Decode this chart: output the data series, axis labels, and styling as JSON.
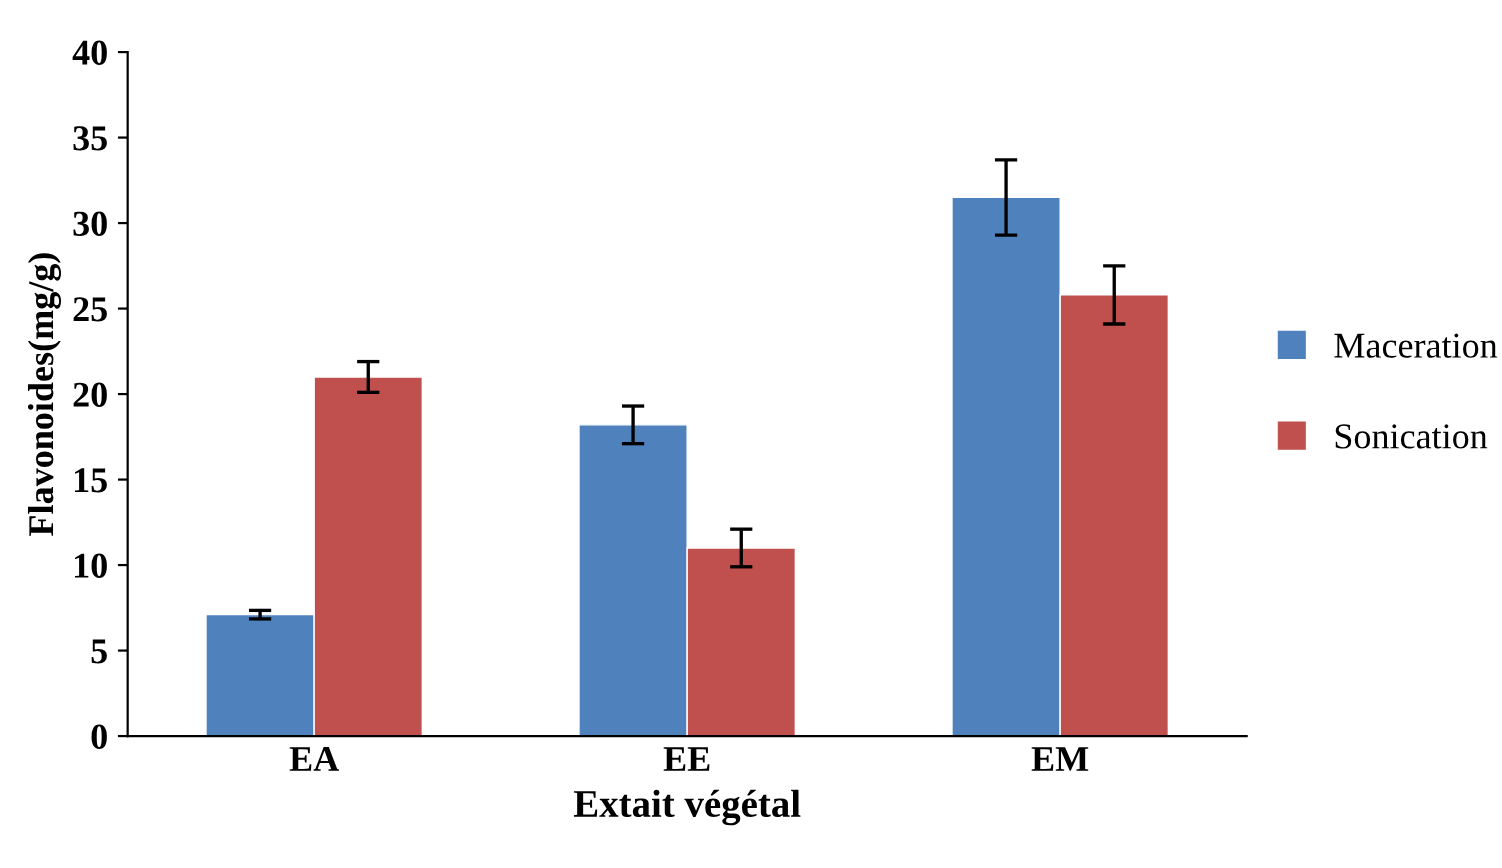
{
  "chart_data": {
    "type": "bar",
    "xlabel": "Extait végétal",
    "ylabel": "Flavonoides(mg/g)",
    "categories": [
      "EA",
      "EE",
      "EM"
    ],
    "series": [
      {
        "name": "Maceration",
        "color": "#4f81bd",
        "values": [
          7.1,
          18.2,
          31.5
        ],
        "errors": [
          0.25,
          1.1,
          2.2
        ]
      },
      {
        "name": "Sonication",
        "color": "#c0504d",
        "values": [
          21.0,
          11.0,
          25.8
        ],
        "errors": [
          0.9,
          1.1,
          1.7
        ]
      }
    ],
    "ylim": [
      0,
      40
    ],
    "yticks": [
      0,
      5,
      10,
      15,
      20,
      25,
      30,
      35,
      40
    ],
    "legend": "right",
    "grid": false
  }
}
